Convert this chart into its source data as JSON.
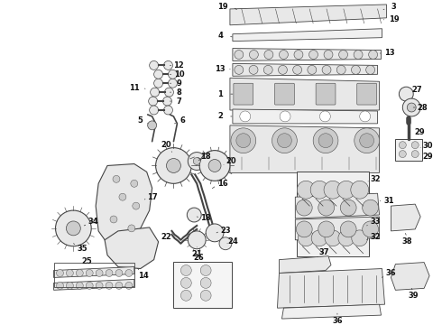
{
  "background_color": "#ffffff",
  "line_color": "#333333",
  "text_color": "#111111",
  "font_size": 5.5,
  "bold_font_size": 6.0,
  "parts_color": "#e8e8e8",
  "parts_edge": "#444444"
}
